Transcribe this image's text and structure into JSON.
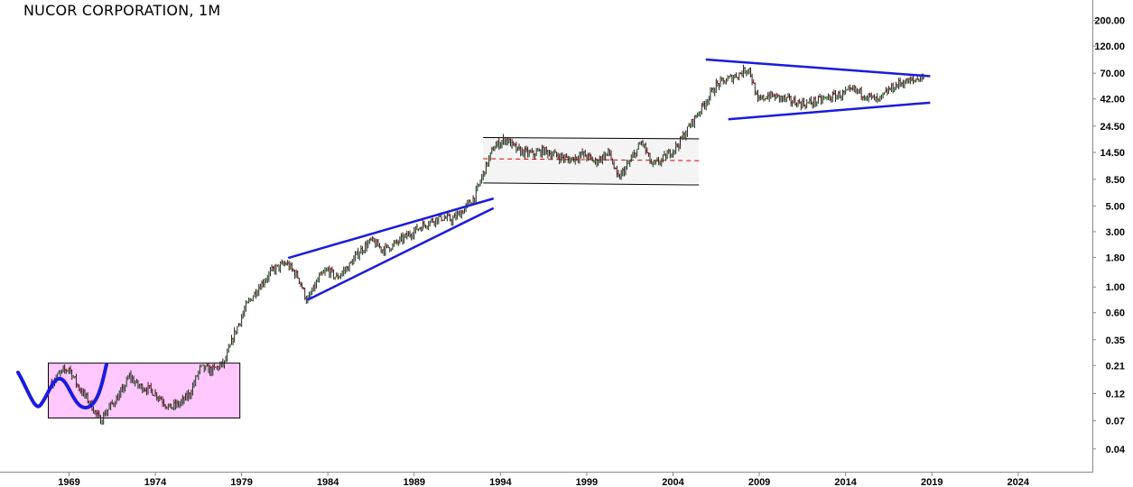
{
  "header": {
    "title": "NUCOR CORPORATION, 1M"
  },
  "chart_data": {
    "type": "line",
    "title": "NUCOR CORPORATION, 1M",
    "xlabel": "",
    "ylabel": "",
    "y_scale": "log",
    "xlim": [
      1965.0,
      2028.3
    ],
    "ylim": [
      0.025,
      300
    ],
    "grid": false,
    "x_ticks": [
      1969,
      1974,
      1979,
      1984,
      1989,
      1994,
      1999,
      2004,
      2009,
      2014,
      2019,
      2024
    ],
    "y_ticks": [
      200.0,
      120.0,
      70.0,
      42.0,
      24.5,
      14.5,
      8.5,
      5.0,
      3.0,
      1.8,
      1.0,
      0.6,
      0.35,
      0.21,
      0.12,
      0.07,
      0.04
    ],
    "y_tick_labels": [
      "200.00",
      "120.00",
      "70.00",
      "42.00",
      "24.50",
      "14.50",
      "8.50",
      "5.00",
      "3.00",
      "1.80",
      "1.00",
      "0.60",
      "0.35",
      "0.21",
      "0.12",
      "0.07",
      "0.04"
    ],
    "series": [
      {
        "x": [
          1968.0,
          1968.5,
          1969.0,
          1969.5,
          1970.2,
          1970.8,
          1971.3,
          1972.0,
          1972.5,
          1973.0,
          1973.7,
          1974.3,
          1974.8,
          1975.5,
          1976.0,
          1976.6,
          1977.3,
          1978.0,
          1978.6,
          1979.3,
          1980.0,
          1980.8,
          1981.6,
          1982.3,
          1982.8,
          1983.5,
          1984.0,
          1984.5,
          1985.2,
          1985.8,
          1986.5,
          1987.2,
          1987.8,
          1988.5,
          1989.2,
          1989.8,
          1990.5,
          1991.2,
          1991.8,
          1992.5,
          1993.0,
          1993.6,
          1994.3,
          1995.0,
          1995.8,
          1996.5,
          1997.3,
          1998.0,
          1998.8,
          1999.5,
          2000.3,
          2000.8,
          2001.5,
          2002.2,
          2002.8,
          2003.5,
          2004.3,
          2005.0,
          2005.8,
          2006.5,
          2007.2,
          2007.9,
          2008.4,
          2008.9,
          2009.5,
          2010.2,
          2010.9,
          2011.6,
          2012.3,
          2013.0,
          2013.8,
          2014.5,
          2015.2,
          2015.9,
          2016.5,
          2017.2,
          2017.9,
          2018.5
        ],
        "y": [
          0.15,
          0.18,
          0.2,
          0.14,
          0.1,
          0.07,
          0.09,
          0.12,
          0.17,
          0.14,
          0.13,
          0.11,
          0.09,
          0.1,
          0.12,
          0.2,
          0.19,
          0.22,
          0.4,
          0.7,
          1.0,
          1.4,
          1.6,
          1.2,
          0.75,
          1.2,
          1.4,
          1.2,
          1.5,
          2.0,
          2.5,
          2.1,
          2.3,
          2.7,
          3.2,
          3.6,
          4.0,
          3.8,
          4.5,
          6.0,
          9.5,
          16.0,
          19.0,
          15.0,
          14.0,
          15.0,
          13.5,
          12.5,
          14.0,
          12.0,
          14.5,
          8.5,
          12.0,
          18.0,
          11.0,
          13.0,
          17.0,
          25.0,
          38.0,
          55.0,
          62.0,
          70.0,
          78.0,
          40.0,
          45.0,
          43.0,
          40.0,
          38.0,
          40.0,
          43.0,
          46.0,
          50.0,
          45.0,
          40.0,
          50.0,
          58.0,
          60.0,
          66.0
        ]
      }
    ],
    "annotations": [
      {
        "type": "rectangle",
        "x": [
          1967.8,
          1978.9
        ],
        "y": [
          0.074,
          0.22
        ],
        "fill": "#ffc8ff"
      },
      {
        "type": "trendline",
        "x": [
          1981.7,
          1993.6
        ],
        "y": [
          1.78,
          5.8
        ]
      },
      {
        "type": "trendline",
        "x": [
          1982.8,
          1993.6
        ],
        "y": [
          0.77,
          4.8
        ]
      },
      {
        "type": "channel",
        "x": [
          1993.0,
          2005.5
        ],
        "y_upper": [
          19.5,
          19.0
        ],
        "y_mid": [
          12.8,
          12.3
        ],
        "y_lower": [
          7.9,
          7.6
        ]
      },
      {
        "type": "trendline",
        "x": [
          2005.9,
          2018.9
        ],
        "y": [
          92.0,
          66.0
        ]
      },
      {
        "type": "trendline",
        "x": [
          2007.2,
          2018.9
        ],
        "y": [
          28.0,
          39.0
        ]
      }
    ],
    "colors": {
      "up": "#33aa33",
      "down": "#cc0000",
      "bar": "#222222",
      "trend": "#1a1adf",
      "box": "#ffc8ff",
      "channel": "#000000",
      "mid": "#dd0000"
    }
  }
}
